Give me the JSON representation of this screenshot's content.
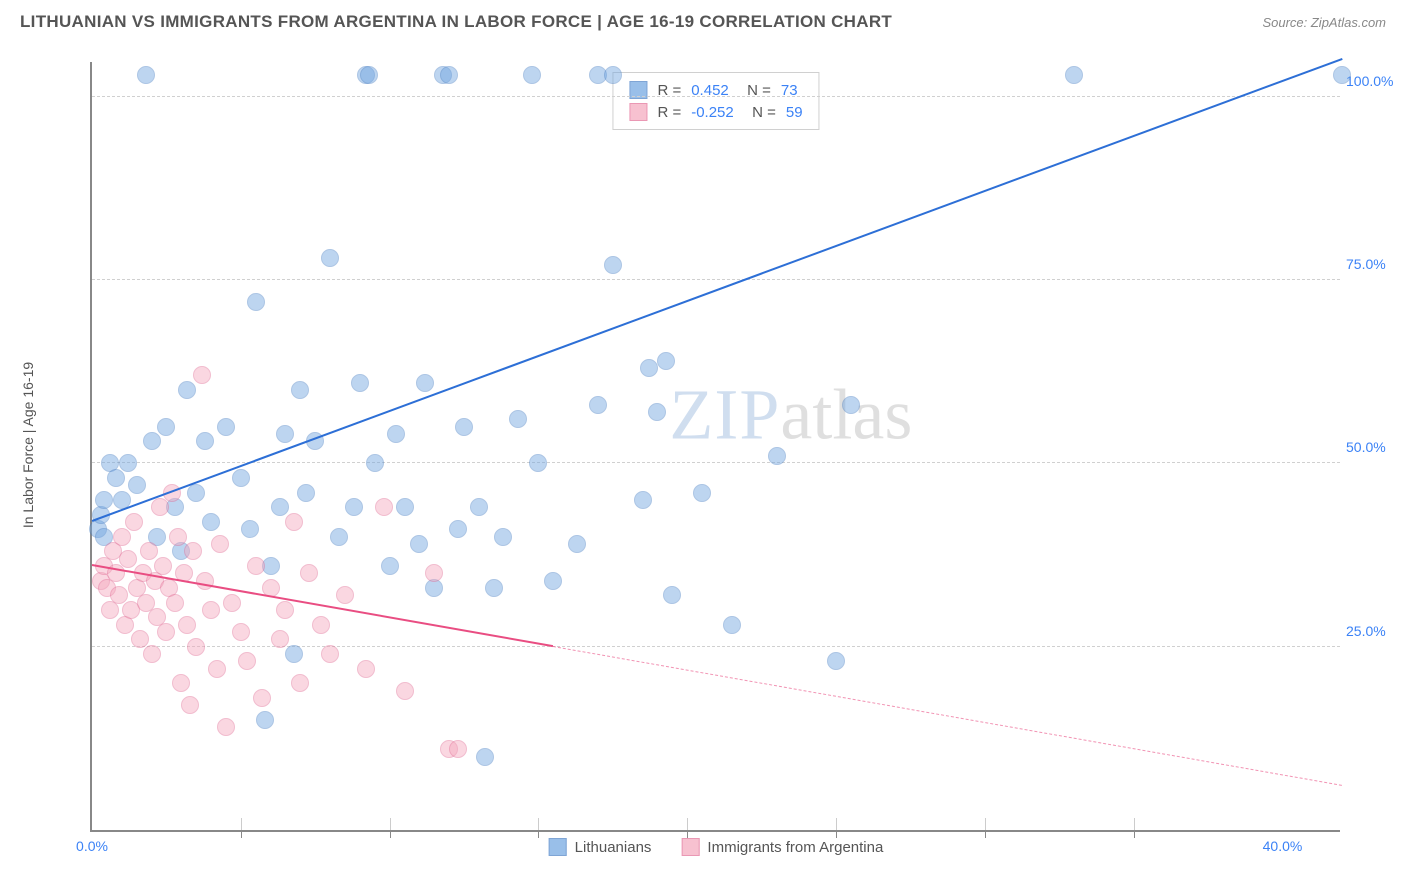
{
  "header": {
    "title": "LITHUANIAN VS IMMIGRANTS FROM ARGENTINA IN LABOR FORCE | AGE 16-19 CORRELATION CHART",
    "source": "Source: ZipAtlas.com"
  },
  "chart": {
    "type": "scatter",
    "ylabel": "In Labor Force | Age 16-19",
    "background_color": "#ffffff",
    "grid_color": "#d0d0d0",
    "axis_color": "#888888",
    "xlim": [
      0,
      42
    ],
    "ylim": [
      0,
      105
    ],
    "yticks": [
      {
        "value": 25,
        "label": "25.0%"
      },
      {
        "value": 50,
        "label": "50.0%"
      },
      {
        "value": 75,
        "label": "75.0%"
      },
      {
        "value": 100,
        "label": "100.0%"
      }
    ],
    "xticks_major": [
      {
        "value": 0,
        "label": "0.0%"
      },
      {
        "value": 40,
        "label": "40.0%"
      }
    ],
    "xticks_minor": [
      5,
      10,
      15,
      20,
      25,
      30,
      35
    ],
    "ytick_color": "#3b82f6",
    "xtick_color": "#3b82f6",
    "marker_radius": 9,
    "marker_opacity": 0.45,
    "series": [
      {
        "name": "Lithuanians",
        "color": "#6fa4e0",
        "border_color": "#4a80c4",
        "trend_color": "#2d6fd6",
        "trend": {
          "x1": 0,
          "y1": 42,
          "x2": 42,
          "y2": 105,
          "solid_until_x": 42
        },
        "stats": {
          "R": "0.452",
          "N": "73"
        },
        "points": [
          [
            0.2,
            41
          ],
          [
            0.3,
            43
          ],
          [
            0.4,
            45
          ],
          [
            0.4,
            40
          ],
          [
            0.6,
            50
          ],
          [
            0.8,
            48
          ],
          [
            1.0,
            45
          ],
          [
            1.2,
            50
          ],
          [
            1.5,
            47
          ],
          [
            1.8,
            103
          ],
          [
            2.0,
            53
          ],
          [
            2.2,
            40
          ],
          [
            2.5,
            55
          ],
          [
            2.8,
            44
          ],
          [
            3.0,
            38
          ],
          [
            3.2,
            60
          ],
          [
            3.5,
            46
          ],
          [
            3.8,
            53
          ],
          [
            4.0,
            42
          ],
          [
            4.5,
            55
          ],
          [
            5.0,
            48
          ],
          [
            5.3,
            41
          ],
          [
            5.5,
            72
          ],
          [
            5.8,
            15
          ],
          [
            6.0,
            36
          ],
          [
            6.3,
            44
          ],
          [
            6.5,
            54
          ],
          [
            6.8,
            24
          ],
          [
            7.0,
            60
          ],
          [
            7.2,
            46
          ],
          [
            7.5,
            53
          ],
          [
            8.0,
            78
          ],
          [
            8.3,
            40
          ],
          [
            8.8,
            44
          ],
          [
            9.0,
            61
          ],
          [
            9.2,
            103
          ],
          [
            9.3,
            103
          ],
          [
            9.5,
            50
          ],
          [
            10.0,
            36
          ],
          [
            10.2,
            54
          ],
          [
            10.5,
            44
          ],
          [
            11.0,
            39
          ],
          [
            11.2,
            61
          ],
          [
            11.5,
            33
          ],
          [
            11.8,
            103
          ],
          [
            12.0,
            103
          ],
          [
            12.3,
            41
          ],
          [
            12.5,
            55
          ],
          [
            13.0,
            44
          ],
          [
            13.2,
            10
          ],
          [
            13.5,
            33
          ],
          [
            13.8,
            40
          ],
          [
            14.3,
            56
          ],
          [
            15.0,
            50
          ],
          [
            15.5,
            34
          ],
          [
            16.3,
            39
          ],
          [
            17.0,
            58
          ],
          [
            17.0,
            103
          ],
          [
            17.5,
            77
          ],
          [
            18.5,
            45
          ],
          [
            18.7,
            63
          ],
          [
            19.0,
            57
          ],
          [
            19.3,
            64
          ],
          [
            19.5,
            32
          ],
          [
            20.5,
            46
          ],
          [
            21.5,
            28
          ],
          [
            23.0,
            51
          ],
          [
            25.0,
            23
          ],
          [
            25.5,
            58
          ],
          [
            33.0,
            103
          ],
          [
            14.8,
            103
          ],
          [
            17.5,
            103
          ],
          [
            42.0,
            103
          ]
        ]
      },
      {
        "name": "Immigrants from Argentina",
        "color": "#f4a7bd",
        "border_color": "#e26d95",
        "trend_color": "#e94d82",
        "trend": {
          "x1": 0,
          "y1": 36,
          "x2": 42,
          "y2": 6,
          "solid_until_x": 15.5
        },
        "stats": {
          "R": "-0.252",
          "N": "59"
        },
        "points": [
          [
            0.3,
            34
          ],
          [
            0.4,
            36
          ],
          [
            0.5,
            33
          ],
          [
            0.6,
            30
          ],
          [
            0.7,
            38
          ],
          [
            0.8,
            35
          ],
          [
            0.9,
            32
          ],
          [
            1.0,
            40
          ],
          [
            1.1,
            28
          ],
          [
            1.2,
            37
          ],
          [
            1.3,
            30
          ],
          [
            1.4,
            42
          ],
          [
            1.5,
            33
          ],
          [
            1.6,
            26
          ],
          [
            1.7,
            35
          ],
          [
            1.8,
            31
          ],
          [
            1.9,
            38
          ],
          [
            2.0,
            24
          ],
          [
            2.1,
            34
          ],
          [
            2.2,
            29
          ],
          [
            2.3,
            44
          ],
          [
            2.4,
            36
          ],
          [
            2.5,
            27
          ],
          [
            2.6,
            33
          ],
          [
            2.7,
            46
          ],
          [
            2.8,
            31
          ],
          [
            2.9,
            40
          ],
          [
            3.0,
            20
          ],
          [
            3.1,
            35
          ],
          [
            3.2,
            28
          ],
          [
            3.3,
            17
          ],
          [
            3.4,
            38
          ],
          [
            3.5,
            25
          ],
          [
            3.7,
            62
          ],
          [
            3.8,
            34
          ],
          [
            4.0,
            30
          ],
          [
            4.2,
            22
          ],
          [
            4.3,
            39
          ],
          [
            4.5,
            14
          ],
          [
            4.7,
            31
          ],
          [
            5.0,
            27
          ],
          [
            5.2,
            23
          ],
          [
            5.5,
            36
          ],
          [
            5.7,
            18
          ],
          [
            6.0,
            33
          ],
          [
            6.3,
            26
          ],
          [
            6.5,
            30
          ],
          [
            6.8,
            42
          ],
          [
            7.0,
            20
          ],
          [
            7.3,
            35
          ],
          [
            7.7,
            28
          ],
          [
            8.0,
            24
          ],
          [
            8.5,
            32
          ],
          [
            9.2,
            22
          ],
          [
            9.8,
            44
          ],
          [
            10.5,
            19
          ],
          [
            11.5,
            35
          ],
          [
            12.0,
            11
          ],
          [
            12.3,
            11
          ]
        ]
      }
    ],
    "legend": {
      "items": [
        {
          "label": "Lithuanians",
          "color": "#6fa4e0",
          "border": "#4a80c4"
        },
        {
          "label": "Immigrants from Argentina",
          "color": "#f4a7bd",
          "border": "#e26d95"
        }
      ]
    },
    "watermark": {
      "part1": "ZIP",
      "part2": "atlas"
    }
  }
}
